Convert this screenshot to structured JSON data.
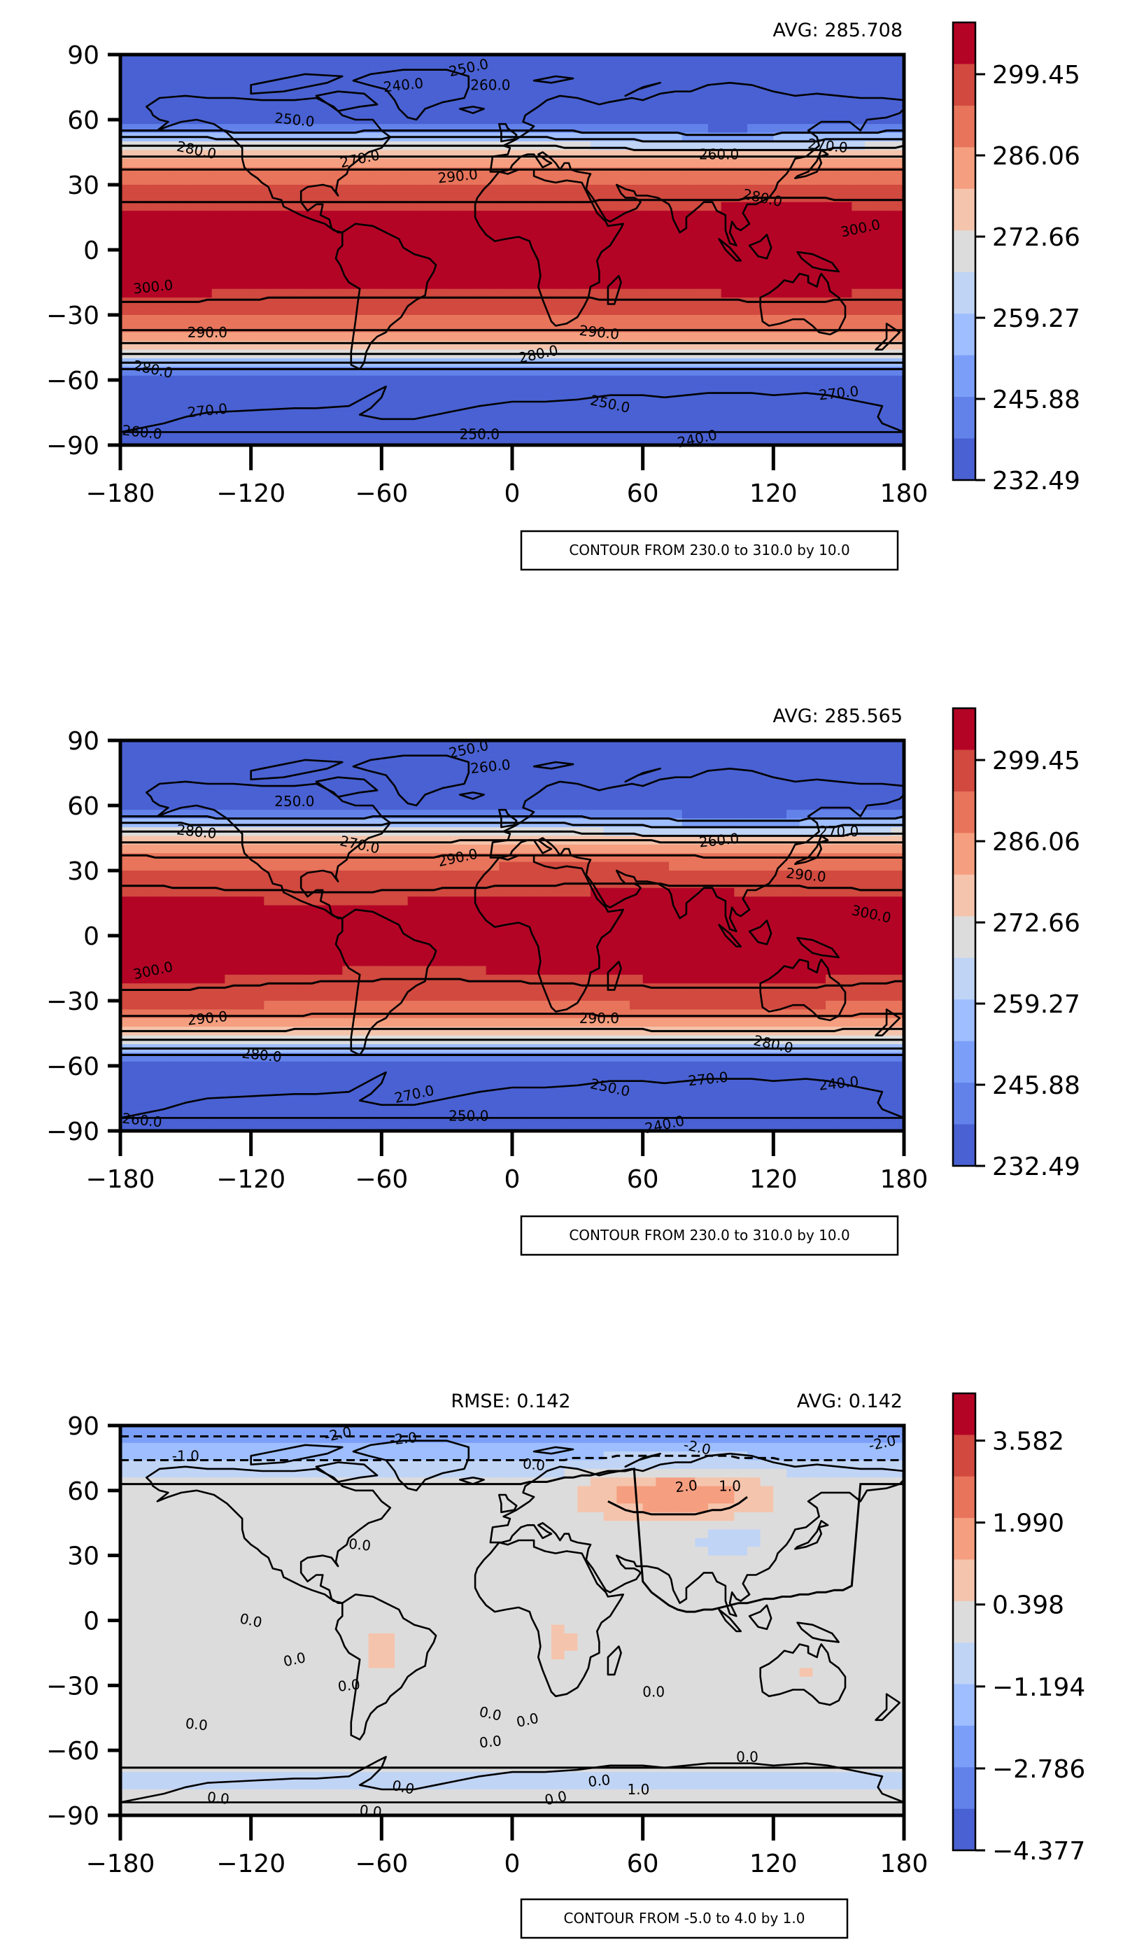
{
  "chart_data": [
    {
      "type": "heatmap",
      "subtype": "filled-contour-map",
      "avg_label": "AVG: 285.708",
      "contour_note": "CONTOUR FROM 230.0 to 310.0 by 10.0",
      "x_ticks": [
        "−180",
        "−120",
        "−60",
        "0",
        "60",
        "120",
        "180"
      ],
      "y_ticks": [
        "90",
        "60",
        "30",
        "0",
        "−30",
        "−60",
        "−90"
      ],
      "xlim": [
        -180,
        180
      ],
      "ylim": [
        -90,
        90
      ],
      "colorbar_ticks": [
        "299.45",
        "286.06",
        "272.66",
        "259.27",
        "245.88",
        "232.49"
      ],
      "colorbar_range": [
        232.49,
        308.0
      ],
      "colorbar_colors": [
        "#b40426",
        "#d1493f",
        "#e7745b",
        "#f59f80",
        "#f5c4ac",
        "#dddcdc",
        "#c0d4f5",
        "#9ebeff",
        "#7b9ff9",
        "#6282ea",
        "#4961d2"
      ],
      "contour_labels": [
        {
          "text": "250.0",
          "lon": -20,
          "lat": 84
        },
        {
          "text": "240.0",
          "lon": -50,
          "lat": 76
        },
        {
          "text": "260.0",
          "lon": -10,
          "lat": 76
        },
        {
          "text": "250.0",
          "lon": -100,
          "lat": 60
        },
        {
          "text": "280.0",
          "lon": -145,
          "lat": 46
        },
        {
          "text": "270.0",
          "lon": -70,
          "lat": 42
        },
        {
          "text": "290.0",
          "lon": -25,
          "lat": 34
        },
        {
          "text": "260.0",
          "lon": 95,
          "lat": 44
        },
        {
          "text": "270.0",
          "lon": 145,
          "lat": 48
        },
        {
          "text": "280.0",
          "lon": 115,
          "lat": 24
        },
        {
          "text": "300.0",
          "lon": 160,
          "lat": 10
        },
        {
          "text": "300.0",
          "lon": -165,
          "lat": -17
        },
        {
          "text": "290.0",
          "lon": -140,
          "lat": -38
        },
        {
          "text": "290.0",
          "lon": 40,
          "lat": -38
        },
        {
          "text": "280.0",
          "lon": -165,
          "lat": -55
        },
        {
          "text": "280.0",
          "lon": 12,
          "lat": -48
        },
        {
          "text": "270.0",
          "lon": -140,
          "lat": -74
        },
        {
          "text": "250.0",
          "lon": -15,
          "lat": -85
        },
        {
          "text": "260.0",
          "lon": -170,
          "lat": -84
        },
        {
          "text": "250.0",
          "lon": 45,
          "lat": -71
        },
        {
          "text": "240.0",
          "lon": 85,
          "lat": -87
        },
        {
          "text": "270.0",
          "lon": 150,
          "lat": -66
        }
      ]
    },
    {
      "type": "heatmap",
      "subtype": "filled-contour-map",
      "avg_label": "AVG: 285.565",
      "contour_note": "CONTOUR FROM 230.0 to 310.0 by 10.0",
      "x_ticks": [
        "−180",
        "−120",
        "−60",
        "0",
        "60",
        "120",
        "180"
      ],
      "y_ticks": [
        "90",
        "60",
        "30",
        "0",
        "−30",
        "−60",
        "−90"
      ],
      "xlim": [
        -180,
        180
      ],
      "ylim": [
        -90,
        90
      ],
      "colorbar_ticks": [
        "299.45",
        "286.06",
        "272.66",
        "259.27",
        "245.88",
        "232.49"
      ],
      "colorbar_range": [
        232.49,
        308.0
      ],
      "colorbar_colors": [
        "#b40426",
        "#d1493f",
        "#e7745b",
        "#f59f80",
        "#f5c4ac",
        "#dddcdc",
        "#c0d4f5",
        "#9ebeff",
        "#7b9ff9",
        "#6282ea",
        "#4961d2"
      ],
      "contour_labels": [
        {
          "text": "250.0",
          "lon": -20,
          "lat": 86
        },
        {
          "text": "260.0",
          "lon": -10,
          "lat": 78
        },
        {
          "text": "250.0",
          "lon": -100,
          "lat": 62
        },
        {
          "text": "280.0",
          "lon": -145,
          "lat": 48
        },
        {
          "text": "270.0",
          "lon": -70,
          "lat": 42
        },
        {
          "text": "290.0",
          "lon": -25,
          "lat": 36
        },
        {
          "text": "260.0",
          "lon": 95,
          "lat": 44
        },
        {
          "text": "270.0",
          "lon": 150,
          "lat": 48
        },
        {
          "text": "290.0",
          "lon": 135,
          "lat": 28
        },
        {
          "text": "300.0",
          "lon": 165,
          "lat": 10
        },
        {
          "text": "300.0",
          "lon": -165,
          "lat": -16
        },
        {
          "text": "290.0",
          "lon": -140,
          "lat": -38
        },
        {
          "text": "290.0",
          "lon": 40,
          "lat": -38
        },
        {
          "text": "280.0",
          "lon": -115,
          "lat": -55
        },
        {
          "text": "280.0",
          "lon": 120,
          "lat": -50
        },
        {
          "text": "270.0",
          "lon": -45,
          "lat": -73
        },
        {
          "text": "270.0",
          "lon": 90,
          "lat": -66
        },
        {
          "text": "250.0",
          "lon": -20,
          "lat": -83
        },
        {
          "text": "260.0",
          "lon": -170,
          "lat": -85
        },
        {
          "text": "250.0",
          "lon": 45,
          "lat": -70
        },
        {
          "text": "240.0",
          "lon": 70,
          "lat": -87
        },
        {
          "text": "240.0",
          "lon": 150,
          "lat": -68
        }
      ]
    },
    {
      "type": "heatmap",
      "subtype": "filled-contour-map",
      "rmse_label": "RMSE: 0.142",
      "avg_label": "AVG: 0.142",
      "contour_note": "CONTOUR FROM -5.0 to 4.0 by 1.0",
      "x_ticks": [
        "−180",
        "−120",
        "−60",
        "0",
        "60",
        "120",
        "180"
      ],
      "y_ticks": [
        "90",
        "60",
        "30",
        "0",
        "−30",
        "−60",
        "−90"
      ],
      "xlim": [
        -180,
        180
      ],
      "ylim": [
        -90,
        90
      ],
      "colorbar_ticks": [
        "3.582",
        "1.990",
        "0.398",
        "−1.194",
        "−2.786",
        "−4.377"
      ],
      "colorbar_range": [
        -4.377,
        4.5
      ],
      "colorbar_colors": [
        "#b40426",
        "#d1493f",
        "#e7745b",
        "#f59f80",
        "#f5c4ac",
        "#dddcdc",
        "#c0d4f5",
        "#9ebeff",
        "#7b9ff9",
        "#6282ea",
        "#4961d2"
      ],
      "contour_labels": [
        {
          "text": "-2.0",
          "lon": -80,
          "lat": 86
        },
        {
          "text": "-2.0",
          "lon": -50,
          "lat": 84
        },
        {
          "text": "-1.0",
          "lon": -150,
          "lat": 76
        },
        {
          "text": "0.0",
          "lon": 10,
          "lat": 72
        },
        {
          "text": "-2.0",
          "lon": 85,
          "lat": 80
        },
        {
          "text": "-2.0",
          "lon": 170,
          "lat": 82
        },
        {
          "text": "2.0",
          "lon": 80,
          "lat": 62
        },
        {
          "text": "1.0",
          "lon": 100,
          "lat": 62
        },
        {
          "text": "0.0",
          "lon": -70,
          "lat": 35
        },
        {
          "text": "0.0",
          "lon": -120,
          "lat": 0
        },
        {
          "text": "0.0",
          "lon": -100,
          "lat": -18
        },
        {
          "text": "0.0",
          "lon": -75,
          "lat": -30
        },
        {
          "text": "0.0",
          "lon": 65,
          "lat": -33
        },
        {
          "text": "0.0",
          "lon": -145,
          "lat": -48
        },
        {
          "text": "0.0",
          "lon": -10,
          "lat": -43
        },
        {
          "text": "0.0",
          "lon": 7,
          "lat": -46
        },
        {
          "text": "0.0",
          "lon": -10,
          "lat": -56
        },
        {
          "text": "0.0",
          "lon": 108,
          "lat": -63
        },
        {
          "text": "0.0",
          "lon": -135,
          "lat": -82
        },
        {
          "text": "0.0",
          "lon": -50,
          "lat": -77
        },
        {
          "text": "0.0",
          "lon": 20,
          "lat": -82
        },
        {
          "text": "0.0",
          "lon": 40,
          "lat": -74
        },
        {
          "text": "1.0",
          "lon": 58,
          "lat": -78
        },
        {
          "text": "0.0",
          "lon": -65,
          "lat": -88
        }
      ]
    }
  ],
  "colors": {
    "frame": "#000000",
    "coast": "#000000",
    "background": "#ffffff"
  }
}
